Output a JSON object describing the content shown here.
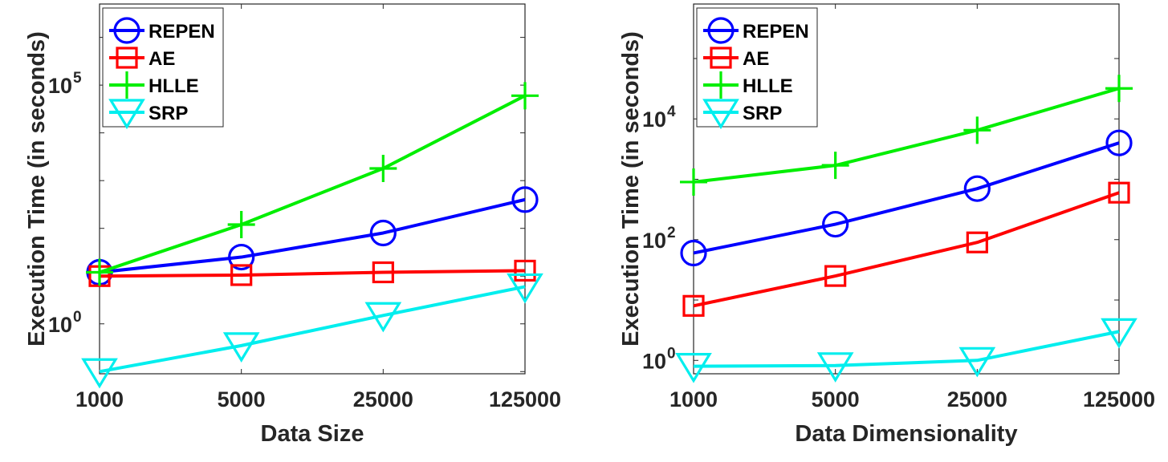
{
  "chart_data": [
    {
      "type": "line",
      "xlabel": "Data Size",
      "ylabel": "Execution Time (in seconds)",
      "x_scale": "log",
      "y_scale": "log",
      "x": [
        1000,
        5000,
        25000,
        125000
      ],
      "x_tick_labels": [
        "1000",
        "5000",
        "25000",
        "125000"
      ],
      "xlim": [
        1000,
        125000
      ],
      "ylim": [
        0.09,
        5000000
      ],
      "y_ticks": [
        {
          "value": 1,
          "base": "10",
          "exp": "0"
        },
        {
          "value": 100000,
          "base": "10",
          "exp": "5"
        }
      ],
      "legend_position": "top-left",
      "grid": false,
      "series": [
        {
          "name": "REPEN",
          "color": "#0000ff",
          "marker": "circle",
          "values": [
            12,
            25,
            80,
            400
          ]
        },
        {
          "name": "AE",
          "color": "#ff0000",
          "marker": "square",
          "values": [
            10,
            10.5,
            12,
            13
          ]
        },
        {
          "name": "HLLE",
          "color": "#00ee00",
          "marker": "plus",
          "values": [
            12,
            120,
            1800,
            60000
          ]
        },
        {
          "name": "SRP",
          "color": "#00eeee",
          "marker": "triangle-down",
          "values": [
            0.1,
            0.35,
            1.5,
            6
          ]
        }
      ]
    },
    {
      "type": "line",
      "xlabel": "Data Dimensionality",
      "ylabel": "Execution Time (in seconds)",
      "x_scale": "log",
      "y_scale": "log",
      "x": [
        1000,
        5000,
        25000,
        125000
      ],
      "x_tick_labels": [
        "1000",
        "5000",
        "25000",
        "125000"
      ],
      "xlim": [
        1000,
        125000
      ],
      "ylim": [
        0.6,
        800000
      ],
      "y_ticks": [
        {
          "value": 1,
          "base": "10",
          "exp": "0"
        },
        {
          "value": 100,
          "base": "10",
          "exp": "2"
        },
        {
          "value": 10000,
          "base": "10",
          "exp": "4"
        }
      ],
      "legend_position": "top-left",
      "grid": false,
      "series": [
        {
          "name": "REPEN",
          "color": "#0000ff",
          "marker": "circle",
          "values": [
            60,
            180,
            700,
            4000
          ]
        },
        {
          "name": "AE",
          "color": "#ff0000",
          "marker": "square",
          "values": [
            8,
            25,
            90,
            600
          ]
        },
        {
          "name": "HLLE",
          "color": "#00ee00",
          "marker": "plus",
          "values": [
            900,
            1700,
            6500,
            32000
          ]
        },
        {
          "name": "SRP",
          "color": "#00eeee",
          "marker": "triangle-down",
          "values": [
            0.8,
            0.82,
            1.0,
            3.0
          ]
        }
      ]
    }
  ]
}
